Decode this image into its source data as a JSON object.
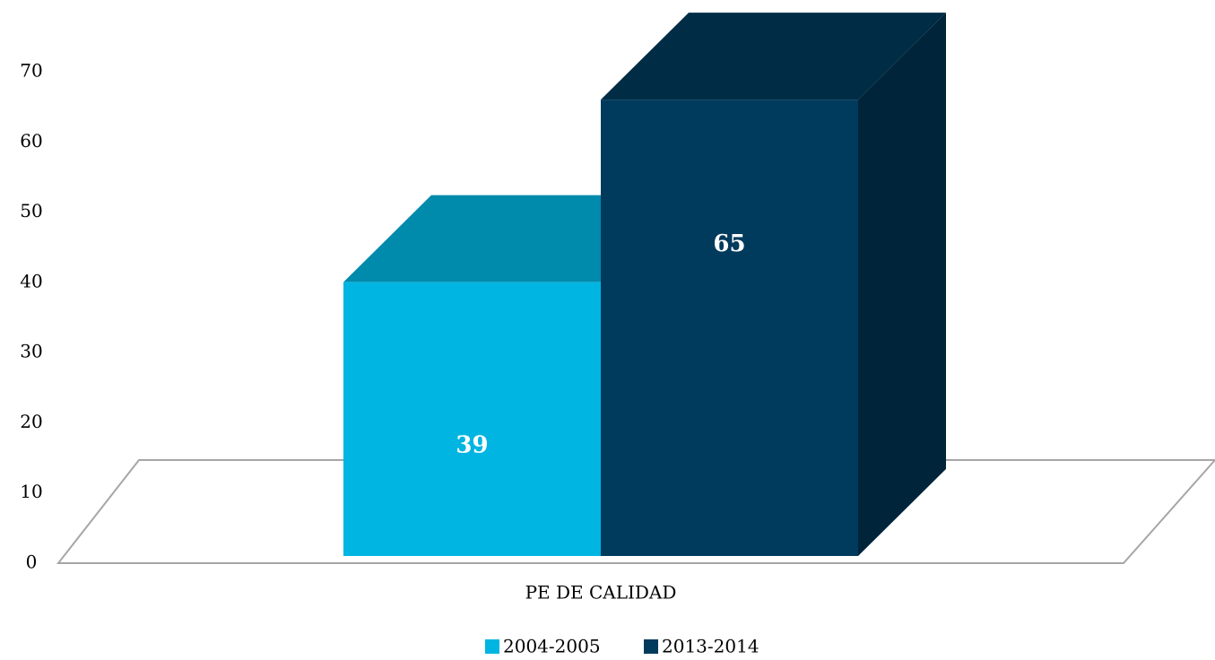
{
  "chart_data": {
    "type": "bar3d",
    "categories": [
      "PE DE CALIDAD"
    ],
    "series": [
      {
        "name": "2004-2005",
        "color": "#00b5e2",
        "values": [
          39
        ]
      },
      {
        "name": "2013-2014",
        "color": "#003a5c",
        "values": [
          65
        ]
      }
    ],
    "ylim": [
      0,
      70
    ],
    "yticks": [
      0,
      10,
      20,
      30,
      40,
      50,
      60,
      70
    ],
    "legend": "bottom"
  }
}
